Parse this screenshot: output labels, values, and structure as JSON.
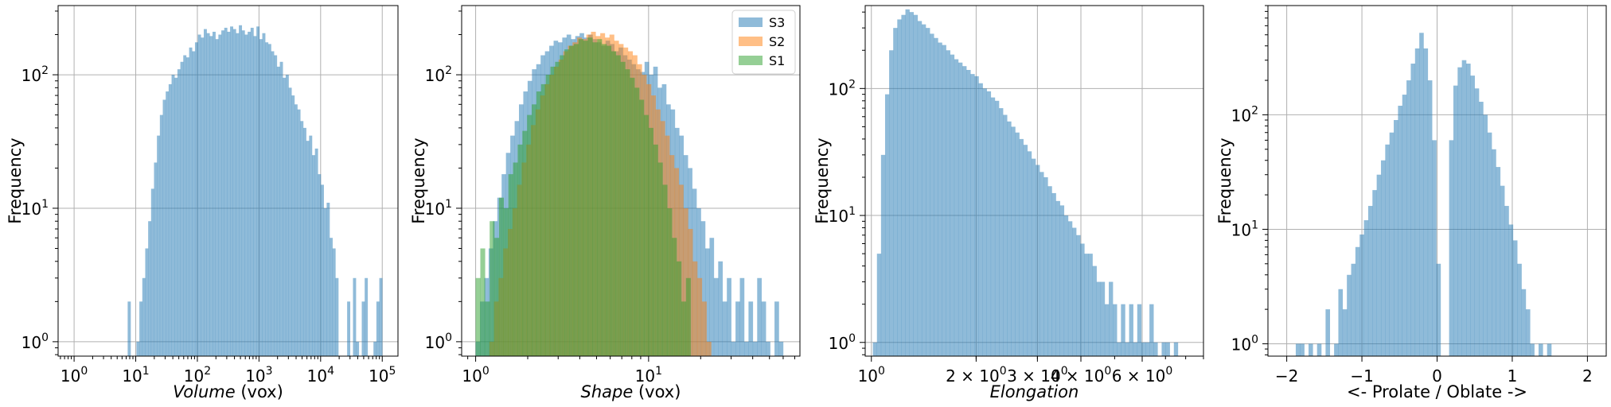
{
  "colors": {
    "S3": "#1f77b4",
    "S2": "#ff7f0e",
    "S1": "#2ca02c"
  },
  "chart_data": [
    {
      "type": "histogram",
      "xscale": "log",
      "yscale": "log",
      "xlim": [
        0.55,
        180000
      ],
      "ylim": [
        0.78,
        330
      ],
      "grid": true,
      "xlabel": "Volume",
      "xlabel_unit": " (vox)",
      "ylabel": "Frequency",
      "xticks": [
        {
          "v": 1,
          "b": "10",
          "e": "0"
        },
        {
          "v": 10,
          "b": "10",
          "e": "1"
        },
        {
          "v": 100,
          "b": "10",
          "e": "2"
        },
        {
          "v": 1000,
          "b": "10",
          "e": "3"
        },
        {
          "v": 10000,
          "b": "10",
          "e": "4"
        },
        {
          "v": 100000,
          "b": "10",
          "e": "5"
        }
      ],
      "yticks": [
        {
          "v": 1,
          "b": "10",
          "e": "0"
        },
        {
          "v": 10,
          "b": "10",
          "e": "1"
        },
        {
          "v": 100,
          "b": "10",
          "e": "2"
        }
      ],
      "series": [
        {
          "color": "S3",
          "alpha": 0.5,
          "edges": [
            7.4,
            100000.0
          ],
          "counts": [
            2,
            0,
            0,
            1,
            2,
            3,
            5,
            8,
            14,
            22,
            35,
            50,
            65,
            75,
            85,
            100,
            95,
            110,
            125,
            140,
            135,
            160,
            150,
            175,
            200,
            190,
            220,
            205,
            195,
            210,
            185,
            200,
            215,
            225,
            210,
            230,
            220,
            205,
            235,
            215,
            200,
            210,
            225,
            195,
            230,
            185,
            205,
            175,
            170,
            150,
            140,
            115,
            125,
            95,
            100,
            80,
            70,
            60,
            55,
            45,
            40,
            32,
            35,
            25,
            28,
            18,
            15,
            10,
            11,
            6,
            5,
            3,
            0,
            0,
            0,
            2,
            0,
            3,
            1,
            0,
            2,
            3,
            0,
            0,
            1,
            2,
            3
          ]
        }
      ]
    },
    {
      "type": "histogram",
      "xscale": "log",
      "yscale": "log",
      "xlim": [
        0.83,
        75
      ],
      "ylim": [
        0.78,
        330
      ],
      "grid": true,
      "xlabel": "Shape",
      "xlabel_unit": " (vox)",
      "ylabel": "Frequency",
      "xticks": [
        {
          "v": 1,
          "b": "10",
          "e": "0"
        },
        {
          "v": 10,
          "b": "10",
          "e": "1"
        }
      ],
      "yticks": [
        {
          "v": 1,
          "b": "10",
          "e": "0"
        },
        {
          "v": 10,
          "b": "10",
          "e": "1"
        },
        {
          "v": 100,
          "b": "10",
          "e": "2"
        }
      ],
      "legend": {
        "position": "top-right",
        "entries": [
          {
            "label": "S3",
            "color": "S3"
          },
          {
            "label": "S2",
            "color": "S2"
          },
          {
            "label": "S1",
            "color": "S1"
          }
        ]
      },
      "series": [
        {
          "name": "S3",
          "color": "S3",
          "alpha": 0.5,
          "edges": [
            1.0,
            60
          ],
          "counts": [
            1,
            2,
            3,
            5,
            8,
            12,
            18,
            26,
            35,
            45,
            60,
            75,
            90,
            110,
            120,
            140,
            150,
            165,
            180,
            175,
            190,
            200,
            185,
            195,
            205,
            190,
            200,
            185,
            175,
            165,
            180,
            170,
            150,
            160,
            140,
            130,
            120,
            110,
            105,
            125,
            100,
            115,
            80,
            85,
            60,
            55,
            40,
            35,
            25,
            20,
            14,
            10,
            8,
            5,
            6,
            3,
            4,
            2,
            3,
            1,
            2,
            3,
            1,
            2,
            1,
            3,
            2,
            1,
            0,
            2,
            1
          ]
        },
        {
          "name": "S2",
          "color": "S2",
          "alpha": 0.5,
          "edges": [
            1.2,
            23
          ],
          "counts": [
            1,
            2,
            3,
            5,
            7,
            10,
            15,
            22,
            30,
            42,
            55,
            70,
            85,
            100,
            115,
            130,
            150,
            165,
            175,
            190,
            185,
            200,
            210,
            195,
            205,
            190,
            200,
            180,
            170,
            160,
            150,
            140,
            120,
            100,
            85,
            70,
            55,
            45,
            35,
            25,
            20,
            15,
            10,
            7,
            4,
            3,
            2,
            1
          ]
        },
        {
          "name": "S1",
          "color": "S1",
          "alpha": 0.5,
          "edges": [
            1.0,
            17.5
          ],
          "counts": [
            3,
            5,
            2,
            8,
            6,
            12,
            10,
            18,
            22,
            30,
            38,
            50,
            60,
            75,
            85,
            100,
            115,
            125,
            140,
            155,
            165,
            170,
            185,
            180,
            190,
            175,
            185,
            170,
            165,
            150,
            140,
            125,
            110,
            95,
            80,
            65,
            50,
            40,
            30,
            22,
            15,
            10,
            6,
            4,
            2,
            3
          ]
        }
      ]
    },
    {
      "type": "histogram",
      "xscale": "log",
      "yscale": "log",
      "xlim": [
        0.96,
        9.0
      ],
      "ylim": [
        0.78,
        450
      ],
      "grid": true,
      "xlabel": "Elongation",
      "xlabel_unit": "",
      "ylabel": "",
      "xticks": [
        {
          "v": 1,
          "b": "10",
          "e": "0"
        },
        {
          "v": 2,
          "b": "2 × 10",
          "e": "0"
        },
        {
          "v": 3,
          "b": "3 × 10",
          "e": "0"
        },
        {
          "v": 4,
          "b": "4 × 10",
          "e": "0"
        },
        {
          "v": 6,
          "b": "6 × 10",
          "e": "0"
        }
      ],
      "yticks": [
        {
          "v": 1,
          "b": "10",
          "e": "0"
        },
        {
          "v": 10,
          "b": "10",
          "e": "1"
        },
        {
          "v": 100,
          "b": "10",
          "e": "2"
        }
      ],
      "series": [
        {
          "color": "S3",
          "alpha": 0.5,
          "edges": [
            1.01,
            7.6
          ],
          "counts": [
            1,
            5,
            30,
            90,
            200,
            300,
            350,
            380,
            420,
            400,
            380,
            340,
            320,
            300,
            270,
            250,
            230,
            220,
            200,
            185,
            170,
            160,
            150,
            140,
            130,
            125,
            110,
            100,
            95,
            85,
            80,
            70,
            62,
            55,
            50,
            45,
            40,
            36,
            32,
            28,
            25,
            22,
            20,
            17,
            15,
            13,
            12,
            10,
            9,
            8,
            7,
            6,
            5,
            5,
            4,
            3,
            3,
            2,
            3,
            2,
            1,
            2,
            1,
            2,
            1,
            2,
            1,
            1,
            2,
            1,
            0,
            1,
            1,
            0,
            1
          ]
        }
      ]
    },
    {
      "type": "histogram",
      "xscale": "linear",
      "yscale": "log",
      "xlim": [
        -2.25,
        2.25
      ],
      "ylim": [
        0.78,
        900
      ],
      "grid": true,
      "xlabel": "<- Prolate / Oblate ->",
      "xlabel_unit": "",
      "ylabel": "Frequency",
      "xticks": [
        {
          "v": -2,
          "t": "−2"
        },
        {
          "v": -1,
          "t": "−1"
        },
        {
          "v": 0,
          "t": "0"
        },
        {
          "v": 1,
          "t": "1"
        },
        {
          "v": 2,
          "t": "2"
        }
      ],
      "yticks": [
        {
          "v": 1,
          "b": "10",
          "e": "0"
        },
        {
          "v": 10,
          "b": "10",
          "e": "1"
        },
        {
          "v": 100,
          "b": "10",
          "e": "2"
        }
      ],
      "series": [
        {
          "color": "S3",
          "alpha": 0.5,
          "edges": [
            -1.88,
            1.52
          ],
          "counts": [
            1,
            1,
            0,
            1,
            0,
            1,
            0,
            2,
            0,
            1,
            3,
            2,
            4,
            5,
            7,
            9,
            12,
            16,
            22,
            30,
            40,
            55,
            70,
            90,
            120,
            150,
            200,
            280,
            380,
            520,
            380,
            200,
            60,
            5,
            0,
            0,
            60,
            180,
            260,
            300,
            280,
            220,
            170,
            130,
            100,
            70,
            50,
            35,
            24,
            16,
            11,
            8,
            5,
            3,
            2,
            1,
            0,
            1,
            0,
            1
          ]
        }
      ]
    }
  ]
}
